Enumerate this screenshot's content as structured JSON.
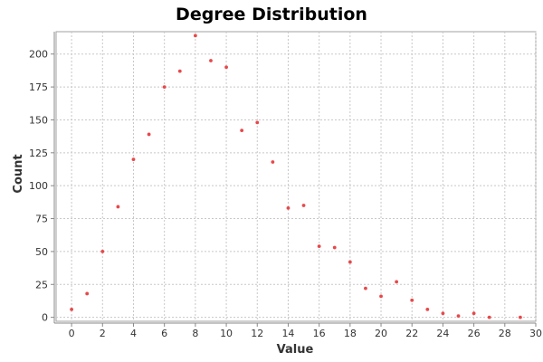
{
  "chart_data": {
    "type": "scatter",
    "title": "Degree Distribution",
    "xlabel": "Value",
    "ylabel": "Count",
    "xlim": [
      -1,
      30
    ],
    "ylim": [
      -3,
      217
    ],
    "xticks": [
      0,
      2,
      4,
      6,
      8,
      10,
      12,
      14,
      16,
      18,
      20,
      22,
      24,
      26,
      28,
      30
    ],
    "yticks": [
      0,
      25,
      50,
      75,
      100,
      125,
      150,
      175,
      200
    ],
    "grid": true,
    "legend": "none",
    "marker_color": "#e8484a",
    "points": [
      {
        "x": 0,
        "y": 6
      },
      {
        "x": 1,
        "y": 18
      },
      {
        "x": 2,
        "y": 50
      },
      {
        "x": 3,
        "y": 84
      },
      {
        "x": 4,
        "y": 120
      },
      {
        "x": 5,
        "y": 139
      },
      {
        "x": 6,
        "y": 175
      },
      {
        "x": 7,
        "y": 187
      },
      {
        "x": 8,
        "y": 214
      },
      {
        "x": 9,
        "y": 195
      },
      {
        "x": 10,
        "y": 190
      },
      {
        "x": 11,
        "y": 142
      },
      {
        "x": 12,
        "y": 148
      },
      {
        "x": 13,
        "y": 118
      },
      {
        "x": 14,
        "y": 83
      },
      {
        "x": 15,
        "y": 85
      },
      {
        "x": 16,
        "y": 54
      },
      {
        "x": 17,
        "y": 53
      },
      {
        "x": 18,
        "y": 42
      },
      {
        "x": 19,
        "y": 22
      },
      {
        "x": 20,
        "y": 16
      },
      {
        "x": 21,
        "y": 27
      },
      {
        "x": 22,
        "y": 13
      },
      {
        "x": 23,
        "y": 6
      },
      {
        "x": 24,
        "y": 3
      },
      {
        "x": 25,
        "y": 1
      },
      {
        "x": 26,
        "y": 3
      },
      {
        "x": 27,
        "y": 0
      },
      {
        "x": 29,
        "y": 0
      }
    ]
  }
}
